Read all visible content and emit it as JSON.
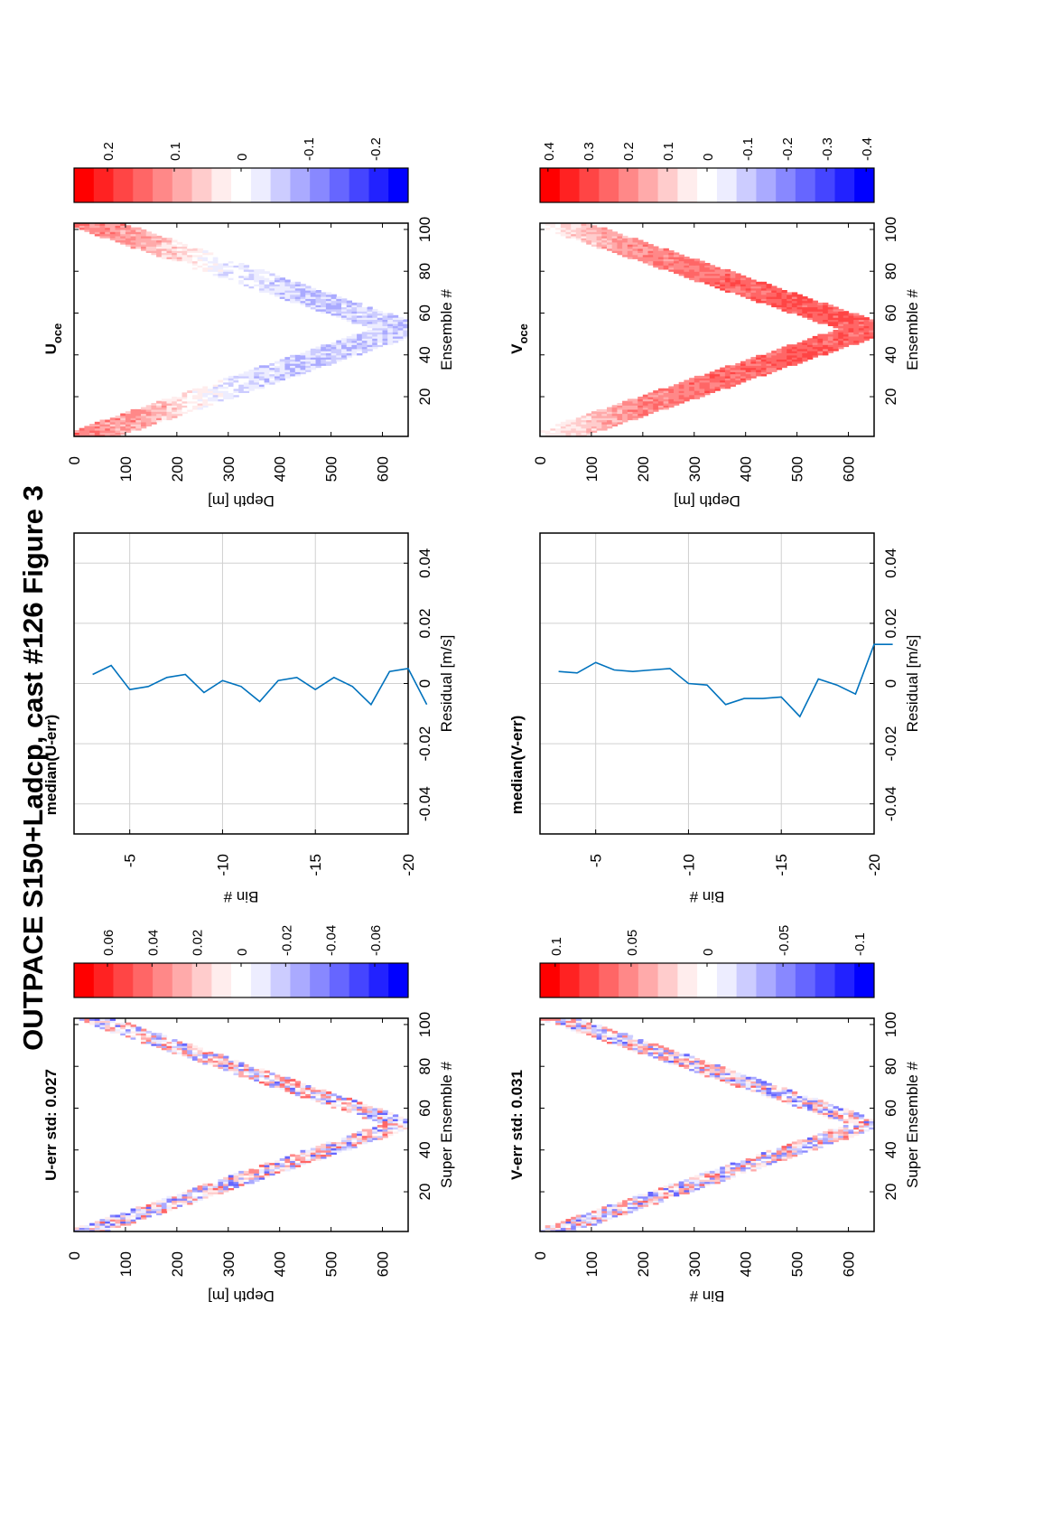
{
  "figure_title": "OUTPACE S150+Ladcp, cast #126  Figure 3",
  "chart_data": [
    {
      "id": "u_err",
      "type": "heatmap",
      "title": "U-err std: 0.027",
      "xlabel": "Super Ensemble #",
      "ylabel": "Depth [m]",
      "xlim": [
        1,
        103
      ],
      "ylim": [
        0,
        650
      ],
      "xticks": [
        20,
        40,
        60,
        80,
        100
      ],
      "yticks": [
        0,
        100,
        200,
        300,
        400,
        500,
        600
      ],
      "profile": {
        "surface_depth": 30,
        "max_depth": 640,
        "turn_x": 52,
        "band_width_m": 70
      },
      "clim": [
        -0.075,
        0.075
      ],
      "colorbar_ticks": [
        0.06,
        0.04,
        0.02,
        0,
        -0.02,
        -0.04,
        -0.06
      ],
      "colorbar_tick_labels": [
        "0.06",
        "0.04",
        "0.02",
        "0",
        "-0.02",
        "-0.04",
        "-0.06"
      ],
      "noise_amplitude": 0.045,
      "seed": 11
    },
    {
      "id": "median_u",
      "type": "line",
      "title": "median(U-err)",
      "xlabel": "Residual [m/s]",
      "ylabel": "Bin #",
      "xlim": [
        -0.05,
        0.05
      ],
      "ylim": [
        -20,
        -2
      ],
      "xticks": [
        -0.04,
        -0.02,
        0,
        0.02,
        0.04
      ],
      "xtick_labels": [
        "-0.04",
        "-0.02",
        "0",
        "0.02",
        "0.04"
      ],
      "yticks": [
        -5,
        -10,
        -15,
        -20
      ],
      "ytick_labels": [
        "-5",
        "-10",
        "-15",
        "-20"
      ],
      "grid": true,
      "series": [
        {
          "bin": [
            -3,
            -4,
            -5,
            -6,
            -7,
            -8,
            -9,
            -10,
            -11,
            -12,
            -13,
            -14,
            -15,
            -16,
            -17,
            -18,
            -19,
            -20,
            -21
          ],
          "residual": [
            0.003,
            0.006,
            -0.002,
            -0.001,
            0.002,
            0.003,
            -0.003,
            0.001,
            -0.001,
            -0.006,
            0.001,
            0.002,
            -0.002,
            0.002,
            -0.001,
            -0.007,
            0.004,
            0.005,
            -0.007
          ]
        }
      ]
    },
    {
      "id": "u_oce",
      "type": "heatmap",
      "title": "U",
      "title_subscript": "oce",
      "xlabel": "Ensemble #",
      "ylabel": "Depth [m]",
      "xlim": [
        1,
        103
      ],
      "ylim": [
        0,
        650
      ],
      "xticks": [
        20,
        40,
        60,
        80,
        100
      ],
      "yticks": [
        0,
        100,
        200,
        300,
        400,
        500,
        600
      ],
      "profile": {
        "surface_depth": 30,
        "max_depth": 640,
        "turn_x": 52,
        "band_width_m": 110
      },
      "clim": [
        -0.25,
        0.25
      ],
      "colorbar_ticks": [
        0.2,
        0.1,
        0,
        -0.1,
        -0.2
      ],
      "colorbar_tick_labels": [
        "0.2",
        "0.1",
        "0",
        "-0.1",
        "-0.2"
      ],
      "depth_mean": [
        [
          0,
          0.13
        ],
        [
          150,
          0.08
        ],
        [
          250,
          0.0
        ],
        [
          350,
          -0.04
        ],
        [
          450,
          -0.06
        ],
        [
          550,
          -0.05
        ],
        [
          640,
          -0.06
        ]
      ],
      "noise_amplitude": 0.04,
      "seed": 23
    },
    {
      "id": "v_err",
      "type": "heatmap",
      "title": "V-err std: 0.031",
      "xlabel": "Super Ensemble #",
      "ylabel": "Bin #",
      "xlim": [
        1,
        103
      ],
      "ylim": [
        0,
        650
      ],
      "xticks": [
        20,
        40,
        60,
        80,
        100
      ],
      "yticks": [
        0,
        100,
        200,
        300,
        400,
        500,
        600
      ],
      "profile": {
        "surface_depth": 30,
        "max_depth": 640,
        "turn_x": 52,
        "band_width_m": 70
      },
      "clim": [
        -0.11,
        0.11
      ],
      "colorbar_ticks": [
        0.1,
        0.05,
        0,
        -0.05,
        -0.1
      ],
      "colorbar_tick_labels": [
        "0.1",
        "0.05",
        "0",
        "-0.05",
        "-0.1"
      ],
      "noise_amplitude": 0.065,
      "seed": 37
    },
    {
      "id": "median_v",
      "type": "line",
      "title": "median(V-err)",
      "xlabel": "Residual [m/s]",
      "ylabel": "Bin #",
      "xlim": [
        -0.05,
        0.05
      ],
      "ylim": [
        -20,
        -2
      ],
      "xticks": [
        -0.04,
        -0.02,
        0,
        0.02,
        0.04
      ],
      "xtick_labels": [
        "-0.04",
        "-0.02",
        "0",
        "0.02",
        "0.04"
      ],
      "yticks": [
        -5,
        -10,
        -15,
        -20
      ],
      "ytick_labels": [
        "-5",
        "-10",
        "-15",
        "-20"
      ],
      "grid": true,
      "series": [
        {
          "bin": [
            -3,
            -4,
            -5,
            -6,
            -7,
            -8,
            -9,
            -10,
            -11,
            -12,
            -13,
            -14,
            -15,
            -16,
            -17,
            -18,
            -19,
            -20,
            -21
          ],
          "residual": [
            0.004,
            0.0035,
            0.007,
            0.0045,
            0.004,
            0.0045,
            0.005,
            0.0,
            -0.0005,
            -0.007,
            -0.005,
            -0.005,
            -0.0045,
            -0.011,
            0.0015,
            -0.0005,
            -0.0035,
            0.013,
            0.013
          ]
        }
      ]
    },
    {
      "id": "v_oce",
      "type": "heatmap",
      "title": "V",
      "title_subscript": "oce",
      "xlabel": "Ensemble #",
      "ylabel": "Depth [m]",
      "xlim": [
        1,
        103
      ],
      "ylim": [
        0,
        650
      ],
      "xticks": [
        20,
        40,
        60,
        80,
        100
      ],
      "yticks": [
        0,
        100,
        200,
        300,
        400,
        500,
        600
      ],
      "profile": {
        "surface_depth": 30,
        "max_depth": 640,
        "turn_x": 52,
        "band_width_m": 110
      },
      "clim": [
        -0.42,
        0.42
      ],
      "colorbar_ticks": [
        0.4,
        0.3,
        0.2,
        0.1,
        0,
        -0.1,
        -0.2,
        -0.3,
        -0.4
      ],
      "colorbar_tick_labels": [
        "0.4",
        "0.3",
        "0.2",
        "0.1",
        "0",
        "-0.1",
        "-0.2",
        "-0.3",
        "-0.4"
      ],
      "depth_mean": [
        [
          0,
          0.02
        ],
        [
          100,
          0.12
        ],
        [
          200,
          0.2
        ],
        [
          350,
          0.24
        ],
        [
          500,
          0.26
        ],
        [
          640,
          0.25
        ]
      ],
      "noise_amplitude": 0.05,
      "seed": 51
    }
  ],
  "colors": {
    "line": "#0072bd",
    "grid": "#d0d0d0",
    "colormap": [
      "#ff0000",
      "#ff2222",
      "#ff4545",
      "#ff6666",
      "#ff8888",
      "#ffaaaa",
      "#ffcccc",
      "#ffeded",
      "#ffffff",
      "#ededff",
      "#ccccff",
      "#aaaaff",
      "#8888ff",
      "#6666ff",
      "#4545ff",
      "#2222ff",
      "#0000ff"
    ]
  }
}
